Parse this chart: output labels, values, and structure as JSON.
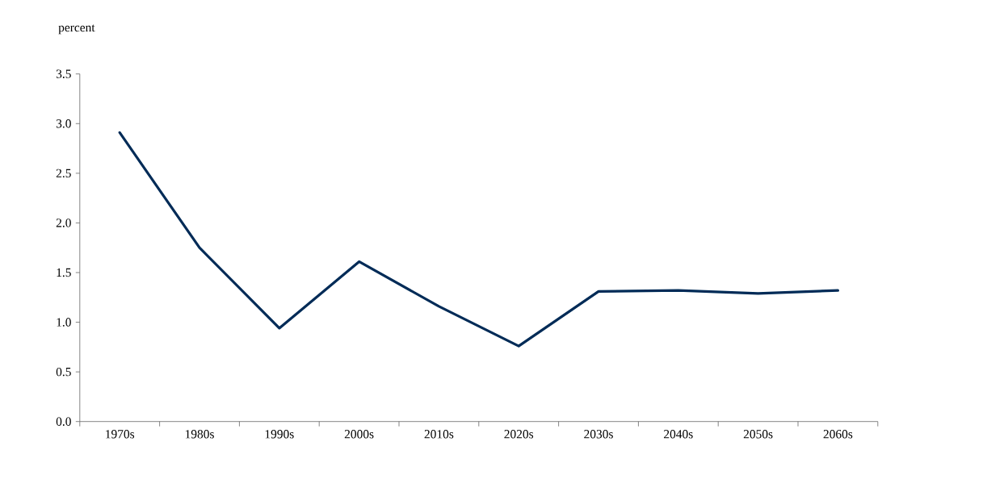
{
  "chart_data": {
    "type": "line",
    "ylabel": "percent",
    "categories": [
      "1970s",
      "1980s",
      "1990s",
      "2000s",
      "2010s",
      "2020s",
      "2030s",
      "2040s",
      "2050s",
      "2060s"
    ],
    "series": [
      {
        "color": "#002b57",
        "values": [
          2.91,
          1.75,
          0.94,
          1.61,
          1.16,
          0.76,
          1.31,
          1.32,
          1.29,
          1.32
        ]
      }
    ],
    "ylim": [
      0,
      3.5
    ],
    "yticks": [
      {
        "value": 0,
        "label": "0.0"
      },
      {
        "value": 0.5,
        "label": "0.5"
      },
      {
        "value": 1,
        "label": "1.0"
      },
      {
        "value": 1.5,
        "label": "1.5"
      },
      {
        "value": 2,
        "label": "2.0"
      },
      {
        "value": 2.5,
        "label": "2.5"
      },
      {
        "value": 3,
        "label": "3.0"
      },
      {
        "value": 3.5,
        "label": "3.5"
      }
    ],
    "grid": false,
    "marker": "none",
    "line_style": "solid"
  }
}
